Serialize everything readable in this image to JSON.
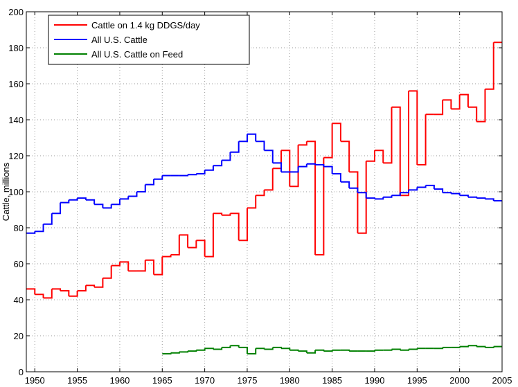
{
  "chart_data": {
    "type": "stairs",
    "ylabel": "Cattle, millions",
    "x": [
      1949,
      1950,
      1951,
      1952,
      1953,
      1954,
      1955,
      1956,
      1957,
      1958,
      1959,
      1960,
      1961,
      1962,
      1963,
      1964,
      1965,
      1966,
      1967,
      1968,
      1969,
      1970,
      1971,
      1972,
      1973,
      1974,
      1975,
      1976,
      1977,
      1978,
      1979,
      1980,
      1981,
      1982,
      1983,
      1984,
      1985,
      1986,
      1987,
      1988,
      1989,
      1990,
      1991,
      1992,
      1993,
      1994,
      1995,
      1996,
      1997,
      1998,
      1999,
      2000,
      2001,
      2002,
      2003,
      2004,
      2005
    ],
    "series": [
      {
        "name": "Cattle on 1.4 kg DDGS/day",
        "color": "#ff0000",
        "values": [
          46,
          43,
          41,
          46,
          45,
          42,
          45,
          48,
          47,
          52,
          59,
          61,
          56,
          56,
          62,
          54,
          64,
          65,
          76,
          69,
          73,
          64,
          88,
          87,
          88,
          73,
          91,
          98,
          101,
          113,
          123,
          103,
          126,
          128,
          65,
          119,
          138,
          128,
          111,
          77,
          117,
          123,
          116,
          147,
          98,
          156,
          115,
          143,
          143,
          151,
          146,
          154,
          147,
          139,
          157,
          183,
          183
        ]
      },
      {
        "name": "All U.S. Cattle",
        "color": "#0000ff",
        "values": [
          77,
          78,
          82,
          88,
          94,
          95.5,
          96.5,
          95.5,
          93,
          91,
          93,
          96,
          97.5,
          100,
          104,
          107,
          109,
          109,
          109,
          109.5,
          110,
          112,
          114.5,
          117.5,
          122,
          128,
          132,
          128,
          123,
          116,
          111,
          111,
          114,
          115.5,
          115,
          114,
          110,
          105.5,
          102,
          99.5,
          96.5,
          96,
          97,
          98,
          99.5,
          101,
          102.5,
          103.5,
          101.5,
          99.5,
          99,
          98,
          97,
          96.5,
          96,
          95,
          95
        ]
      },
      {
        "name": "All U.S. Cattle on Feed",
        "color": "#008000",
        "values": [
          null,
          null,
          null,
          null,
          null,
          null,
          null,
          null,
          null,
          null,
          null,
          null,
          null,
          null,
          null,
          null,
          10,
          10.5,
          11,
          11.5,
          12,
          13,
          12.5,
          13.5,
          14.5,
          13.5,
          10,
          13,
          12.5,
          13.5,
          13,
          12,
          11.5,
          10.5,
          12,
          11.5,
          12,
          12,
          11.5,
          11.5,
          11.5,
          12,
          12,
          12.5,
          12,
          12.5,
          13,
          13,
          13,
          13.5,
          13.5,
          14,
          14.5,
          14,
          13.5,
          14,
          14
        ]
      }
    ],
    "xlim": [
      1949,
      2005
    ],
    "xticks": [
      1950,
      1955,
      1960,
      1965,
      1970,
      1975,
      1980,
      1985,
      1990,
      1995,
      2000,
      2005
    ],
    "ylim": [
      0,
      200
    ],
    "yticks": [
      0,
      20,
      40,
      60,
      80,
      100,
      120,
      140,
      160,
      180,
      200
    ],
    "grid": true,
    "legend": "upper-left"
  }
}
